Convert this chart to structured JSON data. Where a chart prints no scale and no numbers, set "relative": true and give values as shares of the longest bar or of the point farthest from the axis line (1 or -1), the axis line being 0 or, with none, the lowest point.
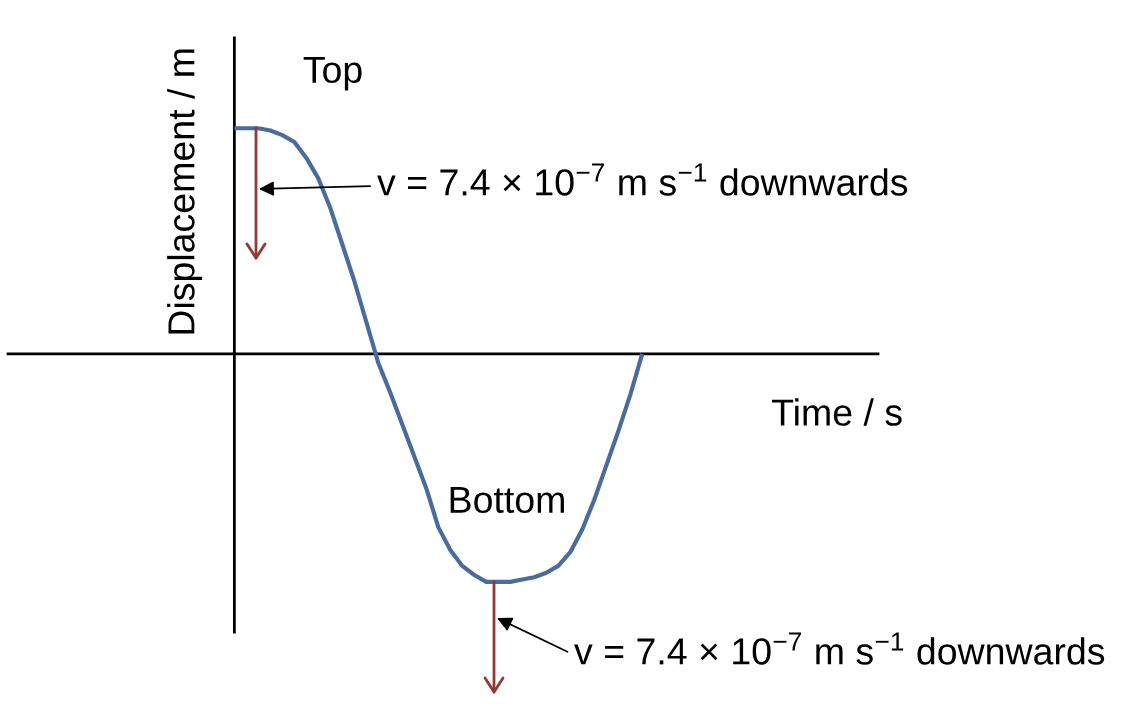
{
  "chart_data": {
    "type": "line",
    "xlabel": "Time / s",
    "ylabel": "Displacement / m",
    "categories": [
      null,
      null,
      null,
      null,
      null,
      null,
      null,
      null,
      null,
      null,
      null,
      null,
      null,
      null,
      null,
      null,
      null,
      null,
      null,
      null,
      null,
      null,
      null,
      null,
      null,
      null,
      null,
      null,
      null,
      null,
      null,
      null,
      null,
      null,
      null
    ],
    "values": [
      0.99,
      0.99,
      0.99,
      0.98,
      0.96,
      0.93,
      0.86,
      0.77,
      0.64,
      0.48,
      0.32,
      0.14,
      -0.04,
      -0.17,
      -0.31,
      -0.45,
      -0.59,
      -0.76,
      -0.86,
      -0.93,
      -0.97,
      -1,
      -1,
      -1,
      -0.99,
      -0.98,
      -0.96,
      -0.93,
      -0.87,
      -0.77,
      -0.64,
      -0.49,
      -0.34,
      -0.18,
      0
    ],
    "color": "#4a6c9c",
    "relative": true,
    "annotations": [
      "Top",
      "Bottom",
      "v = 7.4 × 10$^{−7}$ m s$^{−1}$ downwards",
      "v = 7.4 × 10$^{−7}$ m s$^{−1}$ downwards"
    ]
  }
}
